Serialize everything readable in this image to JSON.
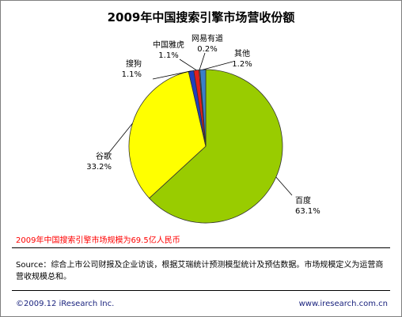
{
  "chart_data": {
    "type": "pie",
    "title": "2009年中国搜索引擎市场营收份额",
    "slices": [
      {
        "name": "百度",
        "value": 63.1,
        "label": "63.1%",
        "color": "#99cc00"
      },
      {
        "name": "谷歌",
        "value": 33.2,
        "label": "33.2%",
        "color": "#ffff00"
      },
      {
        "name": "搜狗",
        "value": 1.1,
        "label": "1.1%",
        "color": "#1f3fbf"
      },
      {
        "name": "中国雅虎",
        "value": 1.1,
        "label": "1.1%",
        "color": "#e0201b"
      },
      {
        "name": "网易有道",
        "value": 0.2,
        "label": "0.2%",
        "color": "#7f7f7f"
      },
      {
        "name": "其他",
        "value": 1.2,
        "label": "1.2%",
        "color": "#3a7fc8"
      }
    ]
  },
  "highlight_note": "2009年中国搜索引擎市场规模为69.5亿人民币",
  "source_note": "Source：综合上市公司财报及企业访谈，根据艾瑞统计预测模型统计及预估数据。市场规模定义为运营商营收规模总和。",
  "copyright": "©2009.12 iResearch Inc.",
  "website": "www.iresearch.com.cn"
}
